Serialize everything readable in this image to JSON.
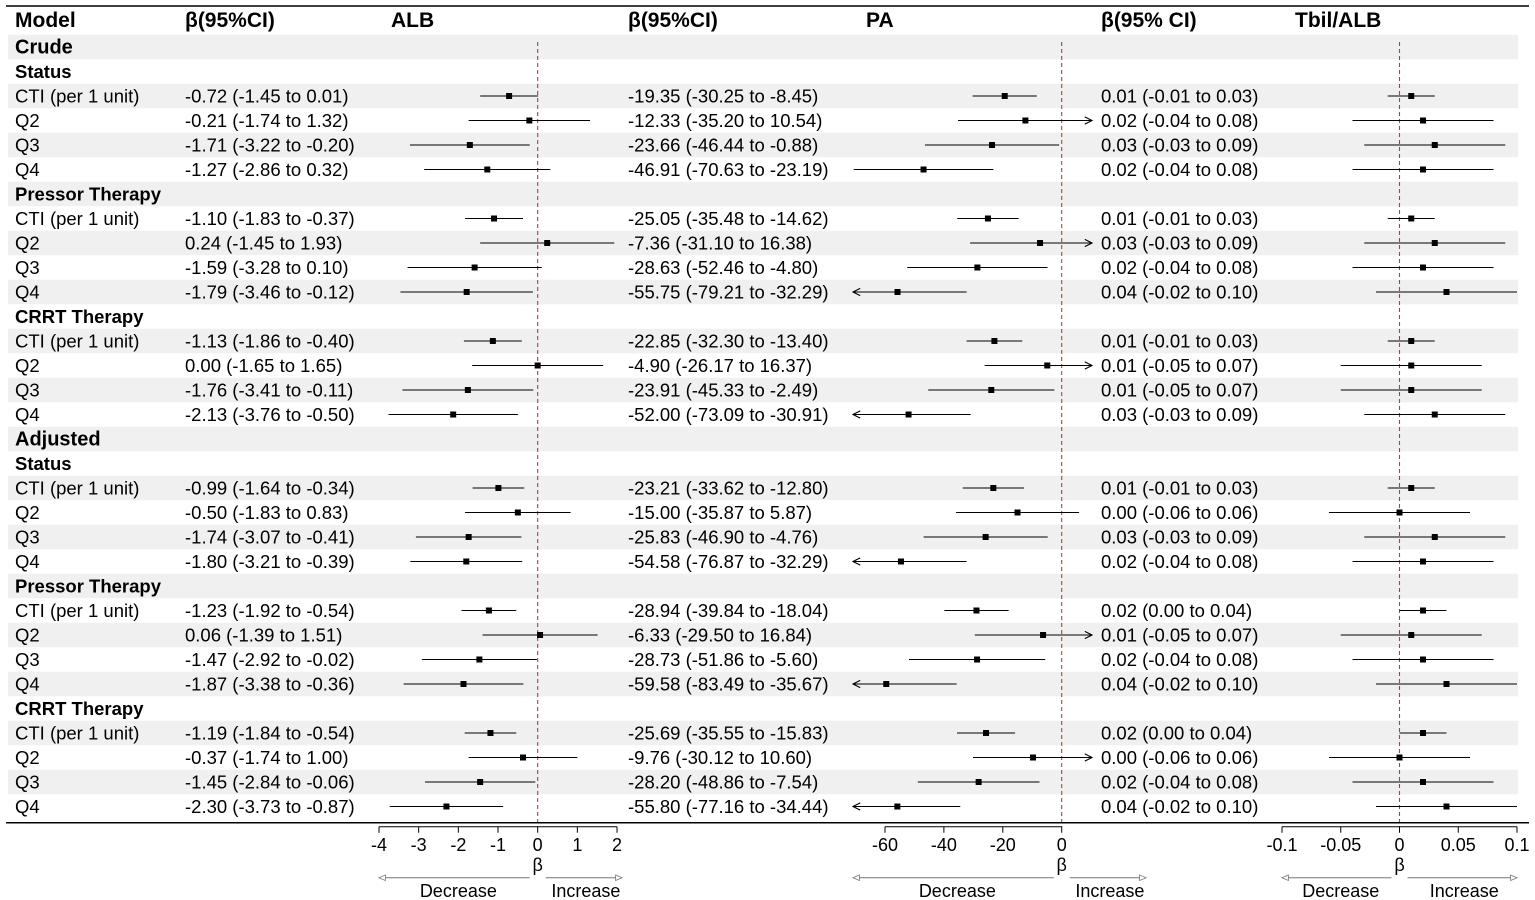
{
  "header": {
    "model": "Model",
    "ci_alb": "β(95%CI)",
    "alb": "ALB",
    "ci_pa": "β(95%CI)",
    "pa": "PA",
    "ci_tbil": "β(95% CI)",
    "tbil": "Tbil/ALB"
  },
  "colors": {
    "band": "#f0f0f0",
    "reference_line": "#c0392b",
    "ink": "#000000",
    "direction_arrow": "#777777"
  },
  "chart_data": {
    "type": "forest",
    "panels": [
      {
        "id": "alb",
        "title": "ALB",
        "xlim": [
          -4,
          2
        ],
        "ticks": [
          -4,
          -3,
          -2,
          -1,
          0,
          1,
          2
        ],
        "tick_labels": [
          "-4",
          "-3",
          "-2",
          "-1",
          "0",
          "1",
          "2"
        ],
        "xlabel": "β",
        "direction_labels": [
          "Decrease",
          "Increase"
        ],
        "reference": 0
      },
      {
        "id": "pa",
        "title": "PA",
        "xlim": [
          -72,
          28
        ],
        "ticks": [
          -60,
          -40,
          -20,
          0
        ],
        "tick_labels": [
          "-60",
          "-40",
          "-20",
          "0"
        ],
        "xlabel": "β",
        "direction_labels": [
          "Decrease",
          "Increase"
        ],
        "reference": 0
      },
      {
        "id": "tbil",
        "title": "Tbil/ALB",
        "xlim": [
          -0.1,
          0.1
        ],
        "ticks": [
          -0.1,
          -0.05,
          0,
          0.05,
          0.1
        ],
        "tick_labels": [
          "-0.1",
          "-0.05",
          "0",
          "0.05",
          "0.1"
        ],
        "xlabel": "β",
        "direction_labels": [
          "Decrease",
          "Increase"
        ],
        "reference": 0
      }
    ],
    "rows": [
      {
        "kind": "group",
        "label": "Crude"
      },
      {
        "kind": "subgroup",
        "label": "Status"
      },
      {
        "kind": "data",
        "label": "CTI (per 1 unit)",
        "alb": {
          "text": "-0.72 (-1.45 to 0.01)",
          "est": -0.72,
          "lo": -1.45,
          "hi": 0.01
        },
        "pa": {
          "text": "-19.35 (-30.25 to -8.45)",
          "est": -19.35,
          "lo": -30.25,
          "hi": -8.45
        },
        "tbil": {
          "text": "0.01 (-0.01 to 0.03)",
          "est": 0.01,
          "lo": -0.01,
          "hi": 0.03
        }
      },
      {
        "kind": "data",
        "label": "Q2",
        "alb": {
          "text": "-0.21 (-1.74 to 1.32)",
          "est": -0.21,
          "lo": -1.74,
          "hi": 1.32
        },
        "pa": {
          "text": "-12.33 (-35.20 to 10.54)",
          "est": -12.33,
          "lo": -35.2,
          "hi": 10.54
        },
        "tbil": {
          "text": "0.02 (-0.04 to 0.08)",
          "est": 0.02,
          "lo": -0.04,
          "hi": 0.08
        }
      },
      {
        "kind": "data",
        "label": "Q3",
        "alb": {
          "text": "-1.71 (-3.22 to -0.20)",
          "est": -1.71,
          "lo": -3.22,
          "hi": -0.2
        },
        "pa": {
          "text": "-23.66 (-46.44 to -0.88)",
          "est": -23.66,
          "lo": -46.44,
          "hi": -0.88
        },
        "tbil": {
          "text": "0.03 (-0.03 to 0.09)",
          "est": 0.03,
          "lo": -0.03,
          "hi": 0.09
        }
      },
      {
        "kind": "data",
        "label": "Q4",
        "alb": {
          "text": "-1.27 (-2.86 to 0.32)",
          "est": -1.27,
          "lo": -2.86,
          "hi": 0.32
        },
        "pa": {
          "text": "-46.91 (-70.63 to -23.19)",
          "est": -46.91,
          "lo": -70.63,
          "hi": -23.19
        },
        "tbil": {
          "text": "0.02 (-0.04 to 0.08)",
          "est": 0.02,
          "lo": -0.04,
          "hi": 0.08
        }
      },
      {
        "kind": "subgroup",
        "label": "Pressor Therapy"
      },
      {
        "kind": "data",
        "label": "CTI (per 1 unit)",
        "alb": {
          "text": "-1.10 (-1.83 to -0.37)",
          "est": -1.1,
          "lo": -1.83,
          "hi": -0.37
        },
        "pa": {
          "text": "-25.05 (-35.48 to -14.62)",
          "est": -25.05,
          "lo": -35.48,
          "hi": -14.62
        },
        "tbil": {
          "text": "0.01 (-0.01 to 0.03)",
          "est": 0.01,
          "lo": -0.01,
          "hi": 0.03
        }
      },
      {
        "kind": "data",
        "label": "Q2",
        "alb": {
          "text": "0.24 (-1.45 to 1.93)",
          "est": 0.24,
          "lo": -1.45,
          "hi": 1.93
        },
        "pa": {
          "text": "-7.36 (-31.10 to 16.38)",
          "est": -7.36,
          "lo": -31.1,
          "hi": 16.38
        },
        "tbil": {
          "text": "0.03 (-0.03 to 0.09)",
          "est": 0.03,
          "lo": -0.03,
          "hi": 0.09
        }
      },
      {
        "kind": "data",
        "label": "Q3",
        "alb": {
          "text": "-1.59 (-3.28 to 0.10)",
          "est": -1.59,
          "lo": -3.28,
          "hi": 0.1
        },
        "pa": {
          "text": "-28.63 (-52.46 to -4.80)",
          "est": -28.63,
          "lo": -52.46,
          "hi": -4.8
        },
        "tbil": {
          "text": "0.02 (-0.04 to 0.08)",
          "est": 0.02,
          "lo": -0.04,
          "hi": 0.08
        }
      },
      {
        "kind": "data",
        "label": "Q4",
        "alb": {
          "text": "-1.79 (-3.46 to -0.12)",
          "est": -1.79,
          "lo": -3.46,
          "hi": -0.12
        },
        "pa": {
          "text": "-55.75 (-79.21 to -32.29)",
          "est": -55.75,
          "lo": -79.21,
          "hi": -32.29
        },
        "tbil": {
          "text": "0.04 (-0.02 to 0.10)",
          "est": 0.04,
          "lo": -0.02,
          "hi": 0.1
        }
      },
      {
        "kind": "subgroup",
        "label": "CRRT Therapy"
      },
      {
        "kind": "data",
        "label": "CTI (per 1 unit)",
        "alb": {
          "text": "-1.13 (-1.86 to -0.40)",
          "est": -1.13,
          "lo": -1.86,
          "hi": -0.4
        },
        "pa": {
          "text": "-22.85 (-32.30 to -13.40)",
          "est": -22.85,
          "lo": -32.3,
          "hi": -13.4
        },
        "tbil": {
          "text": "0.01 (-0.01 to 0.03)",
          "est": 0.01,
          "lo": -0.01,
          "hi": 0.03
        }
      },
      {
        "kind": "data",
        "label": "Q2",
        "alb": {
          "text": "0.00 (-1.65 to 1.65)",
          "est": 0.0,
          "lo": -1.65,
          "hi": 1.65
        },
        "pa": {
          "text": "-4.90 (-26.17 to 16.37)",
          "est": -4.9,
          "lo": -26.17,
          "hi": 16.37
        },
        "tbil": {
          "text": "0.01 (-0.05 to 0.07)",
          "est": 0.01,
          "lo": -0.05,
          "hi": 0.07
        }
      },
      {
        "kind": "data",
        "label": "Q3",
        "alb": {
          "text": "-1.76 (-3.41 to -0.11)",
          "est": -1.76,
          "lo": -3.41,
          "hi": -0.11
        },
        "pa": {
          "text": "-23.91 (-45.33 to -2.49)",
          "est": -23.91,
          "lo": -45.33,
          "hi": -2.49
        },
        "tbil": {
          "text": "0.01 (-0.05 to 0.07)",
          "est": 0.01,
          "lo": -0.05,
          "hi": 0.07
        }
      },
      {
        "kind": "data",
        "label": "Q4",
        "alb": {
          "text": "-2.13 (-3.76 to -0.50)",
          "est": -2.13,
          "lo": -3.76,
          "hi": -0.5
        },
        "pa": {
          "text": "-52.00 (-73.09 to -30.91)",
          "est": -52.0,
          "lo": -73.09,
          "hi": -30.91
        },
        "tbil": {
          "text": "0.03 (-0.03 to 0.09)",
          "est": 0.03,
          "lo": -0.03,
          "hi": 0.09
        }
      },
      {
        "kind": "group",
        "label": "Adjusted"
      },
      {
        "kind": "subgroup",
        "label": "Status"
      },
      {
        "kind": "data",
        "label": "CTI (per 1 unit)",
        "alb": {
          "text": "-0.99 (-1.64 to -0.34)",
          "est": -0.99,
          "lo": -1.64,
          "hi": -0.34
        },
        "pa": {
          "text": "-23.21 (-33.62 to -12.80)",
          "est": -23.21,
          "lo": -33.62,
          "hi": -12.8
        },
        "tbil": {
          "text": "0.01 (-0.01 to 0.03)",
          "est": 0.01,
          "lo": -0.01,
          "hi": 0.03
        }
      },
      {
        "kind": "data",
        "label": "Q2",
        "alb": {
          "text": "-0.50 (-1.83 to 0.83)",
          "est": -0.5,
          "lo": -1.83,
          "hi": 0.83
        },
        "pa": {
          "text": "-15.00 (-35.87 to 5.87)",
          "est": -15.0,
          "lo": -35.87,
          "hi": 5.87
        },
        "tbil": {
          "text": "0.00 (-0.06 to 0.06)",
          "est": 0.0,
          "lo": -0.06,
          "hi": 0.06
        }
      },
      {
        "kind": "data",
        "label": "Q3",
        "alb": {
          "text": "-1.74 (-3.07 to -0.41)",
          "est": -1.74,
          "lo": -3.07,
          "hi": -0.41
        },
        "pa": {
          "text": "-25.83 (-46.90 to -4.76)",
          "est": -25.83,
          "lo": -46.9,
          "hi": -4.76
        },
        "tbil": {
          "text": "0.03 (-0.03 to 0.09)",
          "est": 0.03,
          "lo": -0.03,
          "hi": 0.09
        }
      },
      {
        "kind": "data",
        "label": "Q4",
        "alb": {
          "text": "-1.80 (-3.21 to -0.39)",
          "est": -1.8,
          "lo": -3.21,
          "hi": -0.39
        },
        "pa": {
          "text": "-54.58 (-76.87 to -32.29)",
          "est": -54.58,
          "lo": -76.87,
          "hi": -32.29
        },
        "tbil": {
          "text": "0.02 (-0.04 to 0.08)",
          "est": 0.02,
          "lo": -0.04,
          "hi": 0.08
        }
      },
      {
        "kind": "subgroup",
        "label": "Pressor Therapy"
      },
      {
        "kind": "data",
        "label": "CTI (per 1 unit)",
        "alb": {
          "text": "-1.23 (-1.92 to -0.54)",
          "est": -1.23,
          "lo": -1.92,
          "hi": -0.54
        },
        "pa": {
          "text": "-28.94 (-39.84 to -18.04)",
          "est": -28.94,
          "lo": -39.84,
          "hi": -18.04
        },
        "tbil": {
          "text": "0.02 (0.00 to 0.04)",
          "est": 0.02,
          "lo": 0.0,
          "hi": 0.04
        }
      },
      {
        "kind": "data",
        "label": "Q2",
        "alb": {
          "text": "0.06 (-1.39 to 1.51)",
          "est": 0.06,
          "lo": -1.39,
          "hi": 1.51
        },
        "pa": {
          "text": "-6.33 (-29.50 to 16.84)",
          "est": -6.33,
          "lo": -29.5,
          "hi": 16.84
        },
        "tbil": {
          "text": "0.01 (-0.05 to 0.07)",
          "est": 0.01,
          "lo": -0.05,
          "hi": 0.07
        }
      },
      {
        "kind": "data",
        "label": "Q3",
        "alb": {
          "text": "-1.47 (-2.92 to -0.02)",
          "est": -1.47,
          "lo": -2.92,
          "hi": -0.02
        },
        "pa": {
          "text": "-28.73 (-51.86 to -5.60)",
          "est": -28.73,
          "lo": -51.86,
          "hi": -5.6
        },
        "tbil": {
          "text": "0.02 (-0.04 to 0.08)",
          "est": 0.02,
          "lo": -0.04,
          "hi": 0.08
        }
      },
      {
        "kind": "data",
        "label": "Q4",
        "alb": {
          "text": "-1.87 (-3.38 to -0.36)",
          "est": -1.87,
          "lo": -3.38,
          "hi": -0.36
        },
        "pa": {
          "text": "-59.58 (-83.49 to -35.67)",
          "est": -59.58,
          "lo": -83.49,
          "hi": -35.67
        },
        "tbil": {
          "text": "0.04 (-0.02 to 0.10)",
          "est": 0.04,
          "lo": -0.02,
          "hi": 0.1
        }
      },
      {
        "kind": "subgroup",
        "label": "CRRT Therapy"
      },
      {
        "kind": "data",
        "label": "CTI (per 1 unit)",
        "alb": {
          "text": "-1.19 (-1.84 to -0.54)",
          "est": -1.19,
          "lo": -1.84,
          "hi": -0.54
        },
        "pa": {
          "text": "-25.69 (-35.55 to -15.83)",
          "est": -25.69,
          "lo": -35.55,
          "hi": -15.83
        },
        "tbil": {
          "text": "0.02 (0.00 to 0.04)",
          "est": 0.02,
          "lo": 0.0,
          "hi": 0.04
        }
      },
      {
        "kind": "data",
        "label": "Q2",
        "alb": {
          "text": "-0.37 (-1.74 to 1.00)",
          "est": -0.37,
          "lo": -1.74,
          "hi": 1.0
        },
        "pa": {
          "text": "-9.76 (-30.12 to 10.60)",
          "est": -9.76,
          "lo": -30.12,
          "hi": 10.6
        },
        "tbil": {
          "text": "0.00 (-0.06 to 0.06)",
          "est": 0.0,
          "lo": -0.06,
          "hi": 0.06
        }
      },
      {
        "kind": "data",
        "label": "Q3",
        "alb": {
          "text": "-1.45 (-2.84 to -0.06)",
          "est": -1.45,
          "lo": -2.84,
          "hi": -0.06
        },
        "pa": {
          "text": "-28.20 (-48.86 to -7.54)",
          "est": -28.2,
          "lo": -48.86,
          "hi": -7.54
        },
        "tbil": {
          "text": "0.02 (-0.04 to 0.08)",
          "est": 0.02,
          "lo": -0.04,
          "hi": 0.08
        }
      },
      {
        "kind": "data",
        "label": "Q4",
        "alb": {
          "text": "-2.30 (-3.73 to -0.87)",
          "est": -2.3,
          "lo": -3.73,
          "hi": -0.87
        },
        "pa": {
          "text": "-55.80 (-77.16 to -34.44)",
          "est": -55.8,
          "lo": -77.16,
          "hi": -34.44
        },
        "tbil": {
          "text": "0.04 (-0.02 to 0.10)",
          "est": 0.04,
          "lo": -0.02,
          "hi": 0.1
        }
      }
    ]
  }
}
